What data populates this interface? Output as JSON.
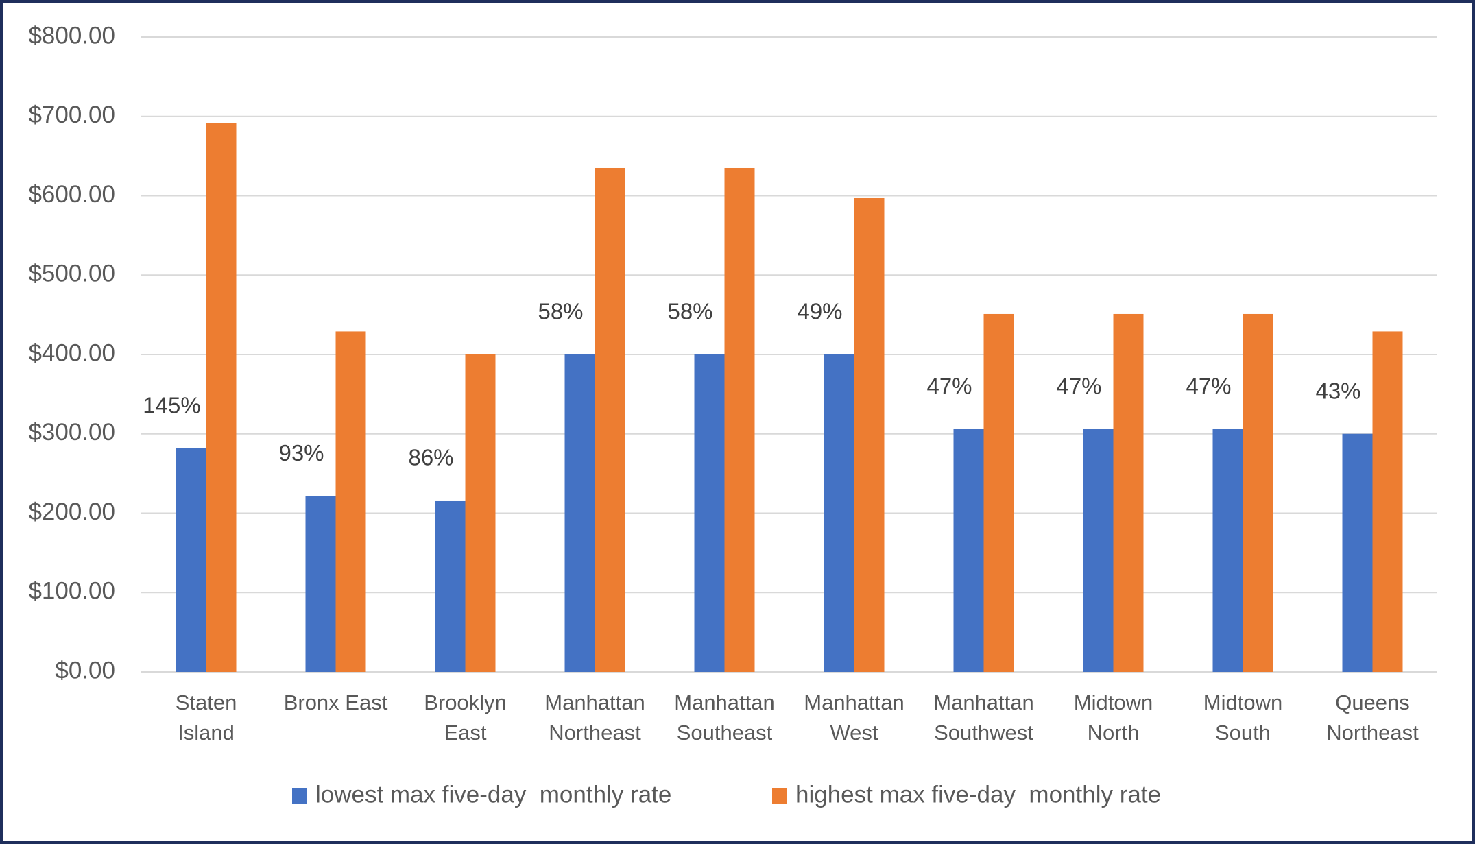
{
  "chart_data": {
    "type": "bar",
    "categories": [
      "Staten\nIsland",
      "Bronx East",
      "Brooklyn\nEast",
      "Manhattan\nNortheast",
      "Manhattan\nSoutheast",
      "Manhattan\nWest",
      "Manhattan\nSouthwest",
      "Midtown\nNorth",
      "Midtown\nSouth",
      "Queens\nNortheast"
    ],
    "series": [
      {
        "name": "lowest max five-day  monthly rate",
        "color": "#4472c4",
        "values": [
          282,
          222,
          216,
          400,
          400,
          400,
          306,
          306,
          306,
          300
        ]
      },
      {
        "name": "highest max five-day  monthly rate",
        "color": "#ed7d31",
        "values": [
          692,
          429,
          400,
          635,
          635,
          597,
          451,
          451,
          451,
          429
        ]
      }
    ],
    "annotations": [
      "145%",
      "93%",
      "86%",
      "58%",
      "58%",
      "49%",
      "47%",
      "47%",
      "47%",
      "43%"
    ],
    "ylim": [
      0,
      800
    ],
    "yticks": [
      {
        "value": 0,
        "label": "$0.00"
      },
      {
        "value": 100,
        "label": "$100.00"
      },
      {
        "value": 200,
        "label": "$200.00"
      },
      {
        "value": 300,
        "label": "$300.00"
      },
      {
        "value": 400,
        "label": "$400.00"
      },
      {
        "value": 500,
        "label": "$500.00"
      },
      {
        "value": 600,
        "label": "$600.00"
      },
      {
        "value": 700,
        "label": "$700.00"
      },
      {
        "value": 800,
        "label": "$800.00"
      }
    ],
    "grid": true,
    "legend": "bottom"
  }
}
